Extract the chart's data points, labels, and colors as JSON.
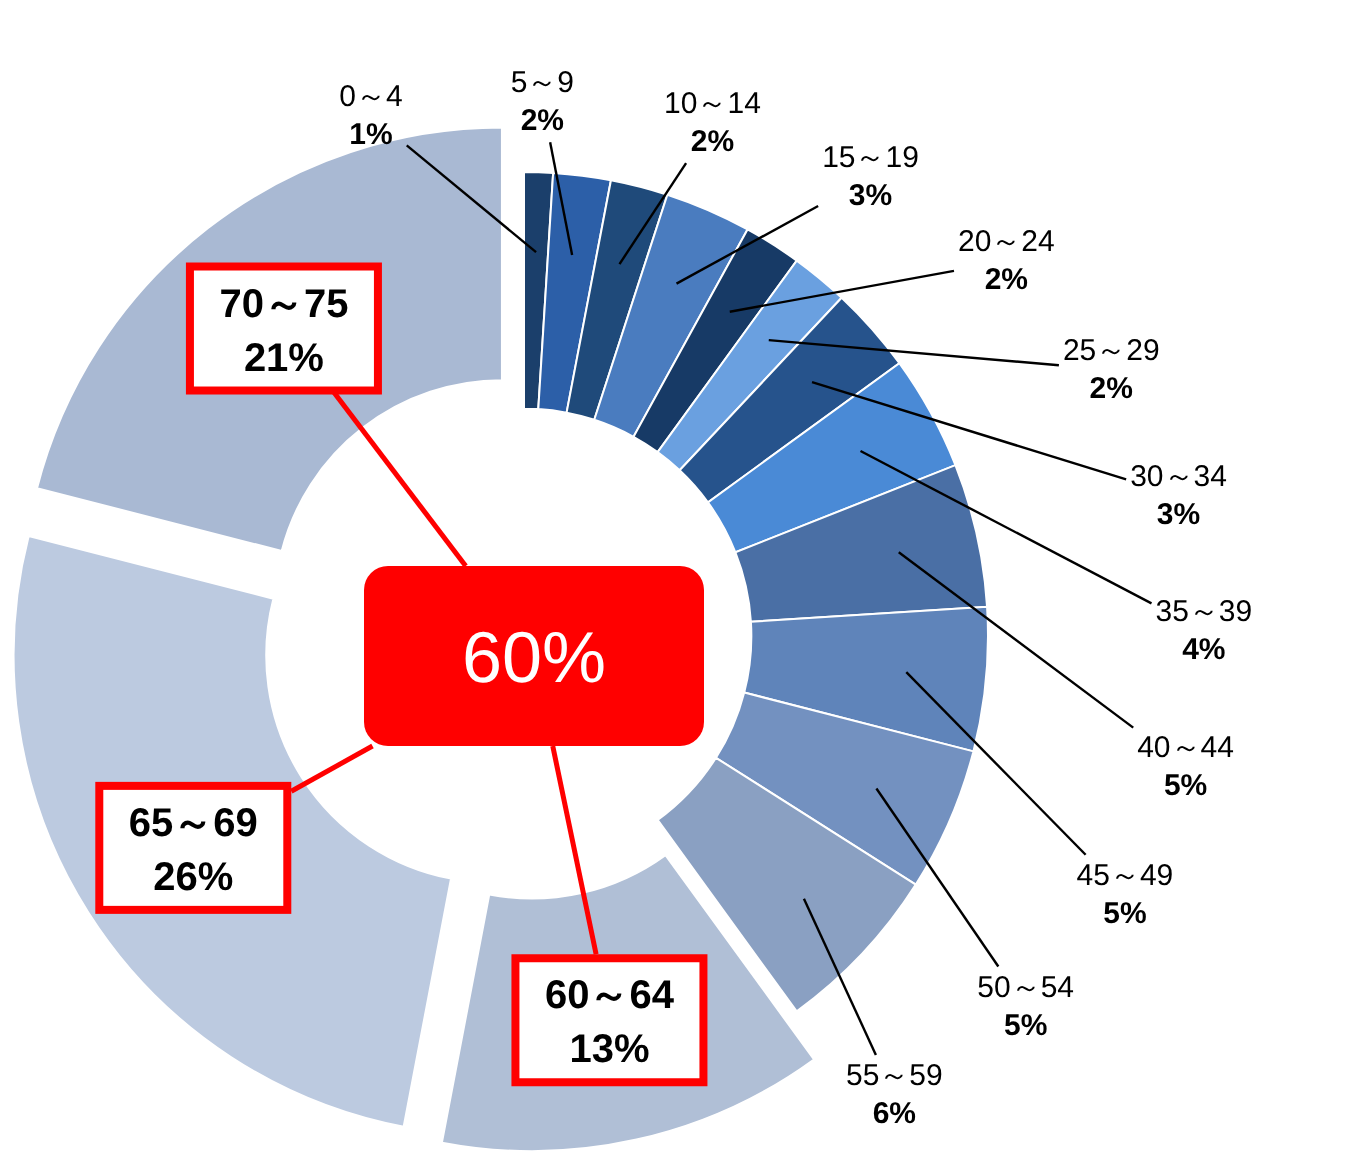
{
  "chart_data": {
    "type": "donut",
    "categories": [
      "0～4",
      "5～9",
      "10～14",
      "15～19",
      "20～24",
      "25～29",
      "30～34",
      "35～39",
      "40～44",
      "45～49",
      "50～54",
      "55～59",
      "60～64",
      "65～69",
      "70～75"
    ],
    "values": [
      1,
      2,
      2,
      3,
      2,
      2,
      3,
      4,
      5,
      5,
      5,
      6,
      13,
      26,
      21
    ],
    "value_labels": [
      "1%",
      "2%",
      "2%",
      "3%",
      "2%",
      "2%",
      "3%",
      "4%",
      "5%",
      "5%",
      "5%",
      "6%",
      "13%",
      "26%",
      "21%"
    ],
    "colors": [
      "#1b3f6b",
      "#2c5fa8",
      "#1f4a7a",
      "#4a7cbf",
      "#173a66",
      "#6aa0e0",
      "#26538c",
      "#4a8ad6",
      "#4a6fa5",
      "#5f84ba",
      "#7391c0",
      "#8aa0c2",
      "#b0bfd6",
      "#bccae0",
      "#a9b9d3"
    ],
    "annotations": [
      "60%"
    ]
  }
}
